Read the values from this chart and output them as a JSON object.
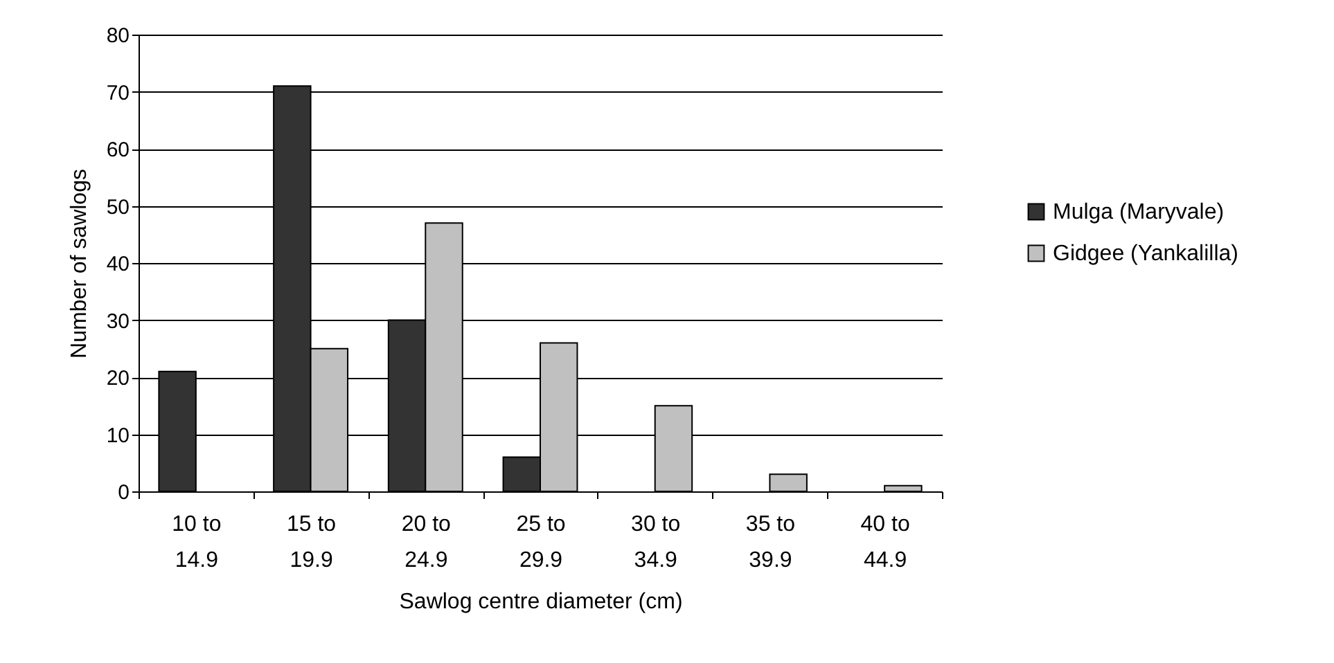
{
  "chart_data": {
    "type": "bar",
    "xlabel": "Sawlog centre diameter (cm)",
    "ylabel": "Number of sawlogs",
    "categories": [
      "10 to 14.9",
      "15 to 19.9",
      "20 to 24.9",
      "25 to 29.9",
      "30 to 34.9",
      "35 to 39.9",
      "40 to 44.9"
    ],
    "series": [
      {
        "name": "Mulga (Maryvale)",
        "color": "#333333",
        "values": [
          21,
          71,
          30,
          6,
          null,
          null,
          null
        ]
      },
      {
        "name": "Gidgee (Yankalilla)",
        "color": "#c0c0c0",
        "values": [
          null,
          25,
          47,
          26,
          15,
          3,
          1
        ]
      }
    ],
    "ylim": [
      0,
      80
    ],
    "yticks": [
      0,
      10,
      20,
      30,
      40,
      50,
      60,
      70,
      80
    ],
    "grid": "y",
    "legend": "right"
  }
}
